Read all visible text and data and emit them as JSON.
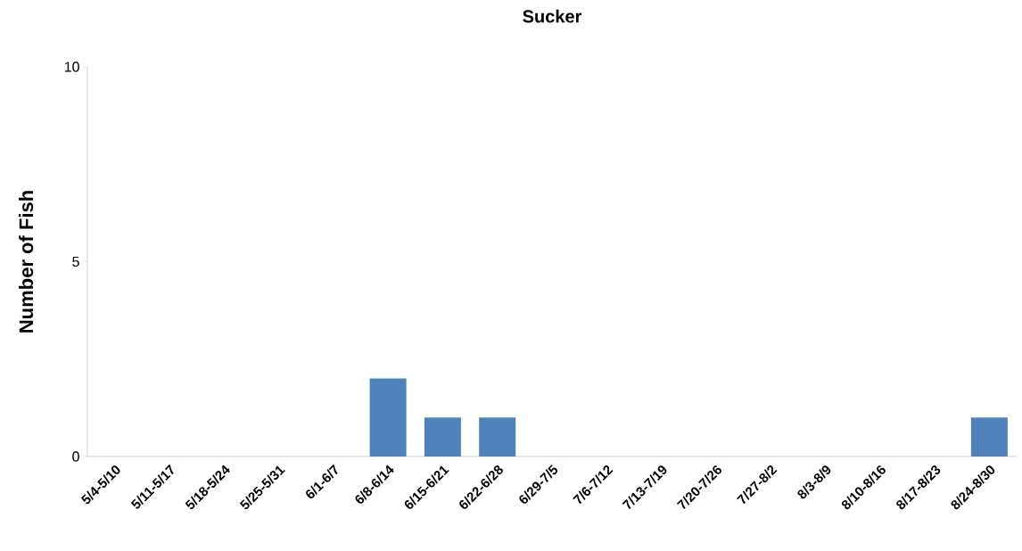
{
  "chart_data": {
    "type": "bar",
    "title": "Sucker",
    "ylabel": "Number of Fish",
    "categories": [
      "5/4-5/10",
      "5/11-5/17",
      "5/18-5/24",
      "5/25-5/31",
      "6/1-6/7",
      "6/8-6/14",
      "6/15-6/21",
      "6/22-6/28",
      "6/29-7/5",
      "7/6-7/12",
      "7/13-7/19",
      "7/20-7/26",
      "7/27-8/2",
      "8/3-8/9",
      "8/10-8/16",
      "8/17-8/23",
      "8/24-8/30"
    ],
    "values": [
      0,
      0,
      0,
      0,
      0,
      2,
      1,
      1,
      0,
      0,
      0,
      0,
      0,
      0,
      0,
      0,
      1
    ],
    "color": "#4f81bd",
    "ylim": [
      0,
      10
    ],
    "yticks": [
      0,
      5,
      10
    ],
    "grid": false
  }
}
